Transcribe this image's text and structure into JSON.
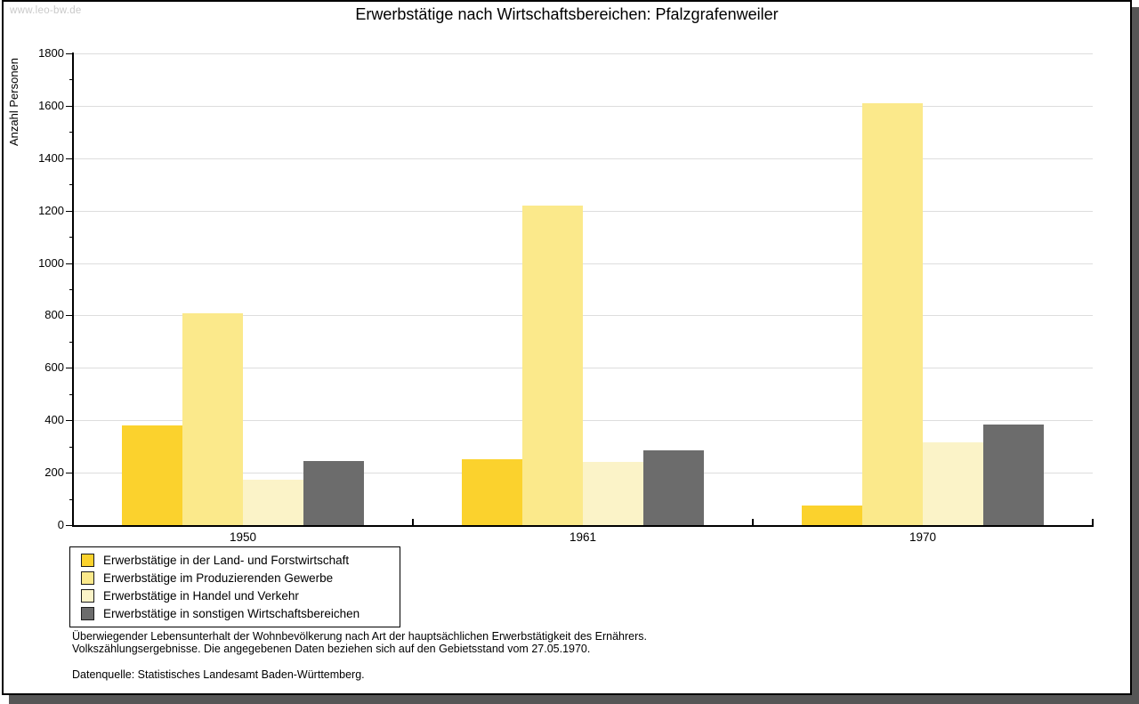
{
  "page": {
    "watermark": "www.leo-bw.de"
  },
  "chart_data": {
    "type": "bar",
    "title": "Erwerbstätige nach Wirtschaftsbereichen: Pfalzgrafenweiler",
    "xlabel": "",
    "ylabel": "Anzahl Personen",
    "ylim": [
      0,
      1800
    ],
    "ytick_step": 200,
    "yminor_step": 100,
    "grid": true,
    "legend_position": "bottom-left",
    "categories": [
      "1950",
      "1961",
      "1970"
    ],
    "series": [
      {
        "name": "Erwerbstätige in der Land- und Forstwirtschaft",
        "color": "#fbd22d",
        "values": [
          380,
          250,
          75
        ]
      },
      {
        "name": "Erwerbstätige im Produzierenden Gewerbe",
        "color": "#fbe98b",
        "values": [
          810,
          1220,
          1610
        ]
      },
      {
        "name": "Erwerbstätige in Handel und Verkehr",
        "color": "#fbf3c8",
        "values": [
          175,
          240,
          315
        ]
      },
      {
        "name": "Erwerbstätige in sonstigen Wirtschaftsbereichen",
        "color": "#6c6c6c",
        "values": [
          245,
          285,
          385
        ]
      }
    ]
  },
  "footer": {
    "note_line1": "Überwiegender Lebensunterhalt der Wohnbevölkerung nach Art der hauptsächlichen Erwerbstätigkeit des Ernährers.",
    "note_line2": "Volkszählungsergebnisse. Die angegebenen Daten beziehen sich auf den Gebietsstand vom 27.05.1970.",
    "source": "Datenquelle: Statistisches Landesamt Baden-Württemberg."
  }
}
